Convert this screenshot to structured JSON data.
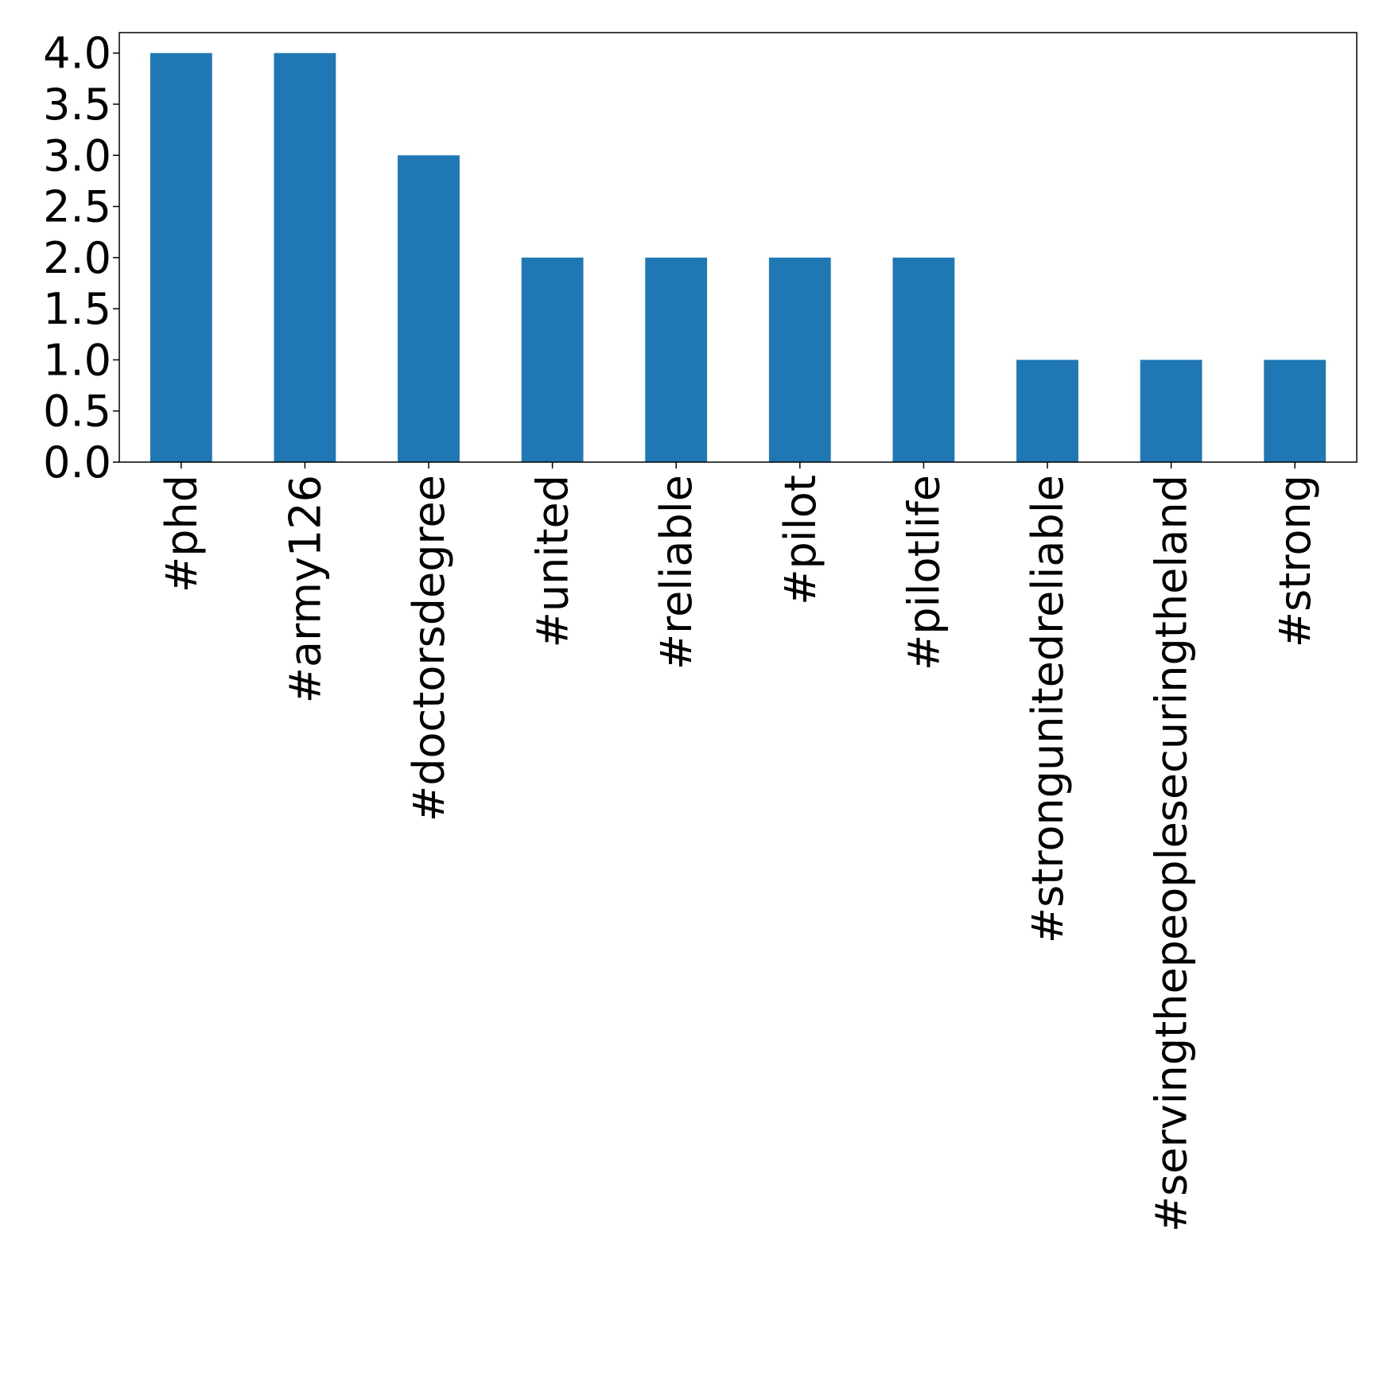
{
  "chart_data": {
    "type": "bar",
    "title": "",
    "xlabel": "",
    "ylabel": "",
    "categories": [
      "#phd",
      "#army126",
      "#doctorsdegree",
      "#united",
      "#reliable",
      "#pilot",
      "#pilotlife",
      "#strongunitedreliable",
      "#servingthepeoplesecuringtheland",
      "#strong"
    ],
    "values": [
      4,
      4,
      3,
      2,
      2,
      2,
      2,
      1,
      1,
      1
    ],
    "ylim": [
      0,
      4.2
    ],
    "yticks": [
      "0.0",
      "0.5",
      "1.0",
      "1.5",
      "2.0",
      "2.5",
      "3.0",
      "3.5",
      "4.0"
    ],
    "grid": false,
    "legend": "none",
    "bar_color": "#1f77b4"
  }
}
